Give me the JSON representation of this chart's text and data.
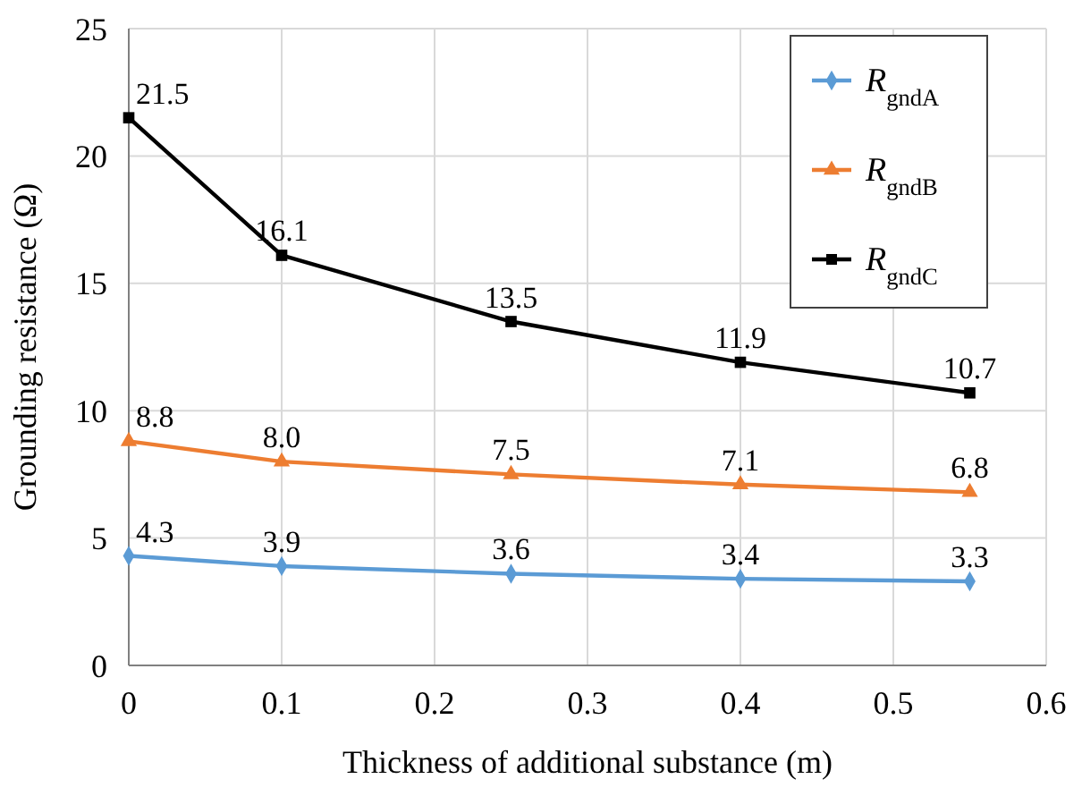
{
  "chart_data": {
    "type": "line",
    "xlabel": "Thickness of additional substance (m)",
    "ylabel": "Grounding resistance (Ω)",
    "x": [
      0,
      0.1,
      0.25,
      0.4,
      0.55
    ],
    "series": [
      {
        "name": "R$_{gndA}$",
        "color": "#5b9bd5",
        "marker": "diamond",
        "values": [
          4.3,
          3.9,
          3.6,
          3.4,
          3.3
        ],
        "value_labels": [
          "4.3",
          "3.9",
          "3.6",
          "3.4",
          "3.3"
        ]
      },
      {
        "name": "R$_{gndB}$",
        "color": "#ed7d31",
        "marker": "triangle",
        "values": [
          8.8,
          8.0,
          7.5,
          7.1,
          6.8
        ],
        "value_labels": [
          "8.8",
          "8.0",
          "7.5",
          "7.1",
          "6.8"
        ]
      },
      {
        "name": "R$_{gndC}$",
        "color": "#000000",
        "marker": "square",
        "values": [
          21.5,
          16.1,
          13.5,
          11.9,
          10.7
        ],
        "value_labels": [
          "21.5",
          "16.1",
          "13.5",
          "11.9",
          "10.7"
        ]
      }
    ],
    "xlim": [
      0,
      0.6
    ],
    "xticks": [
      0,
      0.1,
      0.2,
      0.3,
      0.4,
      0.5,
      0.6
    ],
    "ylim": [
      0,
      25
    ],
    "yticks": [
      0,
      5,
      10,
      15,
      20,
      25
    ],
    "grid": true,
    "legend": "top right",
    "line_style": "solid"
  }
}
